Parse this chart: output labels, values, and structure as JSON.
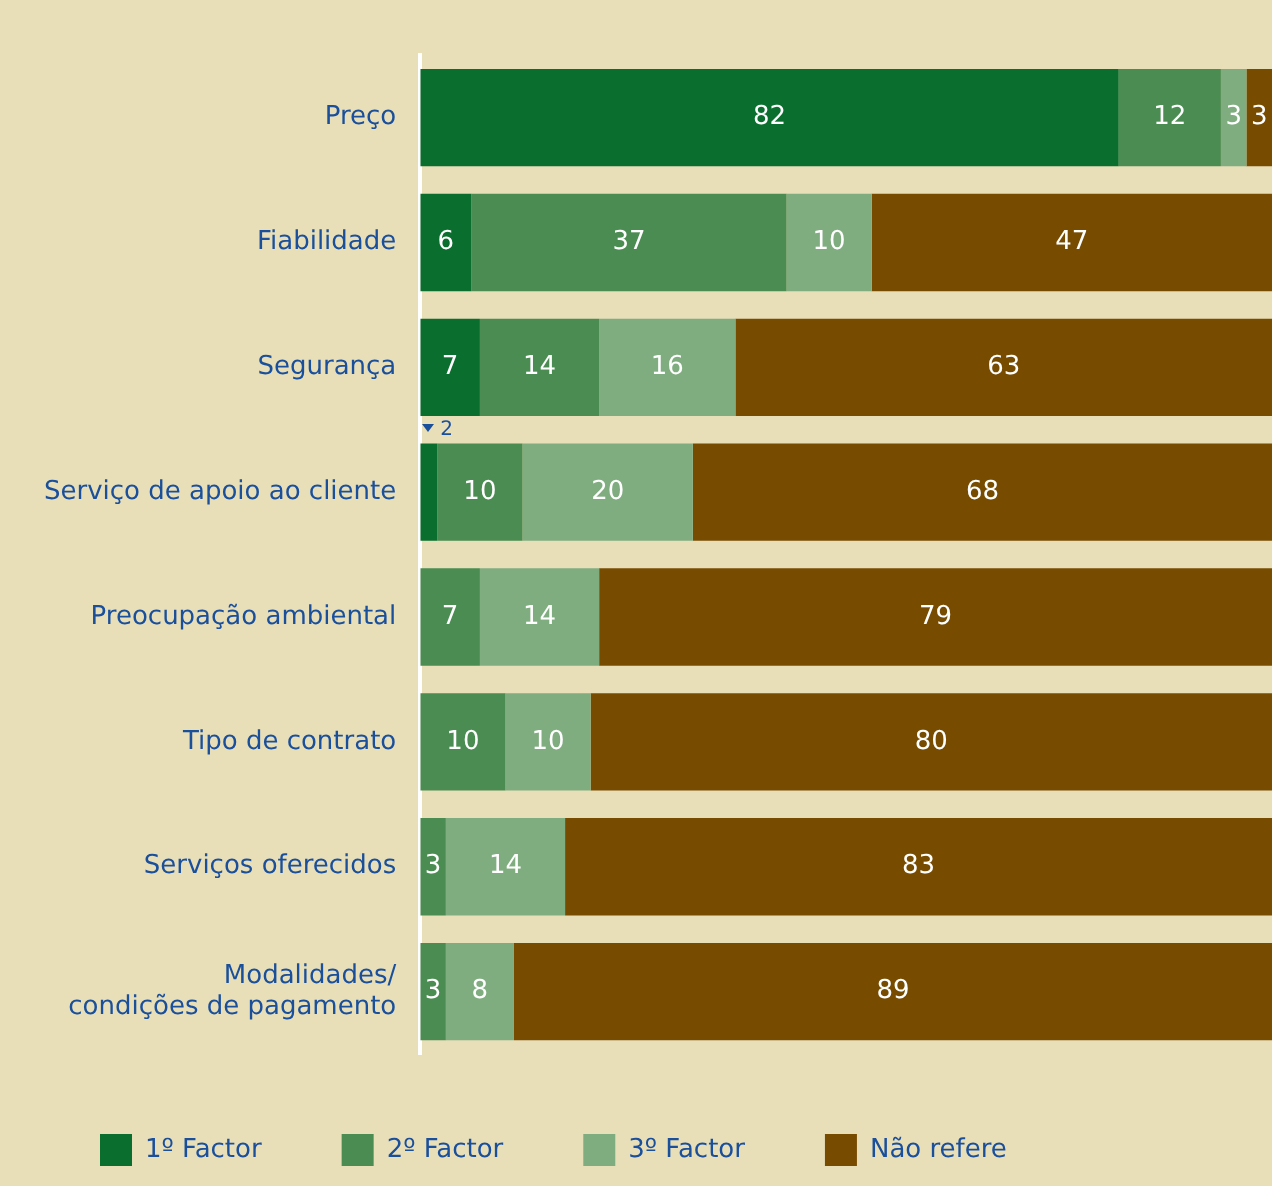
{
  "chart_data": {
    "type": "bar",
    "orientation": "horizontal",
    "stacked": true,
    "legend": "bottom",
    "grid": false,
    "categories": [
      "Preço",
      "Fiabilidade",
      "Segurança",
      "Serviço de apoio ao cliente",
      "Preocupação ambiental",
      "Tipo de contrato",
      "Serviços oferecidos",
      "Modalidades/ condições de pagamento"
    ],
    "series": [
      {
        "name": "1º Factor",
        "color": "#0a6e2e",
        "values": [
          82,
          6,
          7,
          2,
          null,
          null,
          null,
          null
        ],
        "value_labels": [
          "82",
          "6",
          "7",
          "2",
          null,
          null,
          null,
          null
        ]
      },
      {
        "name": "2º Factor",
        "color": "#4a8c51",
        "values": [
          12,
          37,
          14,
          10,
          7,
          10,
          3,
          3
        ],
        "value_labels": [
          "12",
          "37",
          "14",
          "10",
          "7",
          "10",
          "3",
          "3"
        ]
      },
      {
        "name": "3º Factor",
        "color": "#80ad80",
        "values": [
          3,
          10,
          16,
          20,
          14,
          10,
          14,
          8
        ],
        "value_labels": [
          "3",
          "10",
          "16",
          "20",
          "14",
          "10",
          "14",
          "8"
        ]
      },
      {
        "name": "Não refere",
        "color": "#774c00",
        "values": [
          3,
          47,
          63,
          68,
          79,
          80,
          83,
          89
        ],
        "value_labels": [
          "3",
          "47",
          "63",
          "68",
          "79",
          "80",
          "83",
          "89"
        ]
      }
    ]
  }
}
